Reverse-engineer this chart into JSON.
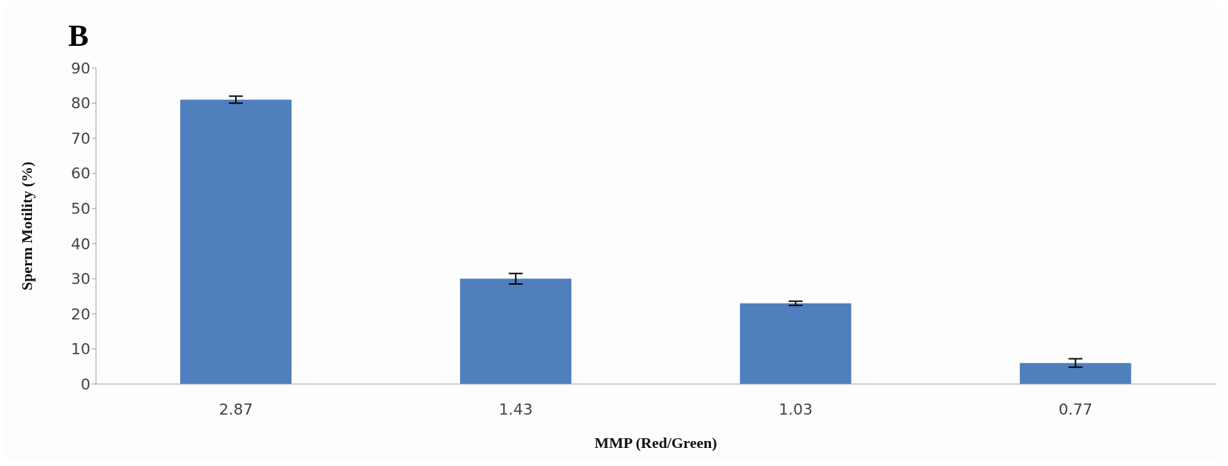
{
  "chart_data": {
    "type": "bar",
    "title": "B",
    "xlabel": "MMP (Red/Green)",
    "ylabel": "Sperm Motility (%)",
    "categories": [
      "2.87",
      "1.43",
      "1.03",
      "0.77"
    ],
    "values": [
      81,
      30,
      23,
      6
    ],
    "errors": [
      1,
      1.5,
      0.6,
      1.2
    ],
    "color": "#4f7fbc",
    "ylim": [
      0,
      90
    ],
    "yticks": [
      0,
      10,
      20,
      30,
      40,
      50,
      60,
      70,
      80,
      90
    ]
  }
}
